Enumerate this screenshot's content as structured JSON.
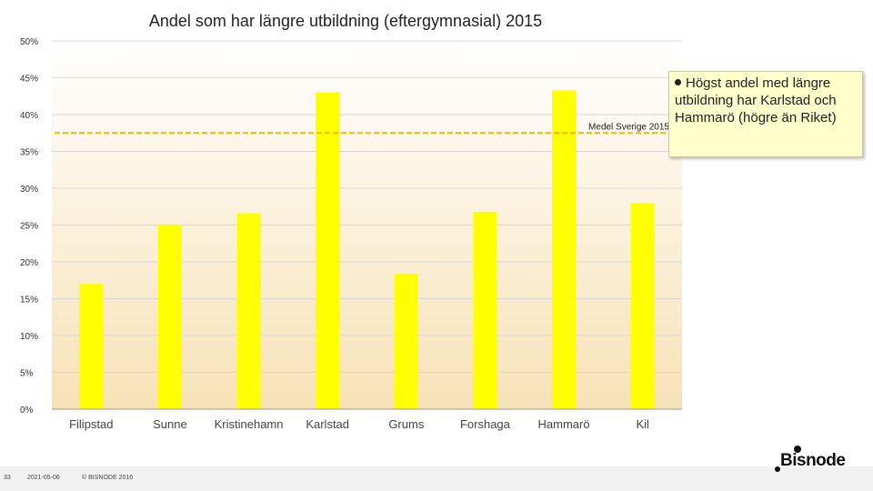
{
  "title": "Andel som har längre utbildning (eftergymnasial) 2015",
  "chart_data": {
    "type": "bar",
    "title": "Andel som har längre utbildning (eftergymnasial) 2015",
    "categories": [
      "Filipstad",
      "Sunne",
      "Kristinehamn",
      "Karlstad",
      "Grums",
      "Forshaga",
      "Hammarö",
      "Kil"
    ],
    "values": [
      17.0,
      25.0,
      26.6,
      43.0,
      18.4,
      26.8,
      43.3,
      28.0
    ],
    "ylim": [
      0,
      50
    ],
    "yticks": [
      0,
      5,
      10,
      15,
      20,
      25,
      30,
      35,
      40,
      45,
      50
    ],
    "ytick_format": "%",
    "grid": true,
    "bar_color": "#ffff00",
    "reference_line": {
      "label": "Medel Sverige 2015",
      "value": 37.5,
      "color": "#f5b800"
    }
  },
  "note": {
    "text": "Högst andel med längre utbildning har Karlstad och Hammarö (högre än Riket)"
  },
  "footer": {
    "page": "33",
    "date": "2021-05-06",
    "copyright": "© BISNODE 2016"
  },
  "logo": {
    "text": "Bisnode"
  }
}
